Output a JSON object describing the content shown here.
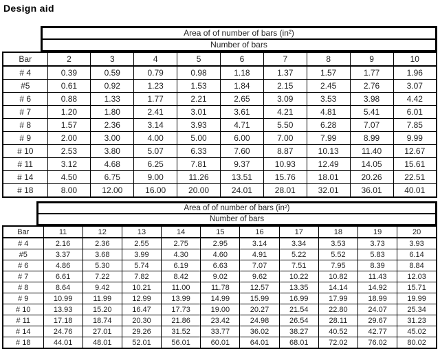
{
  "title": "Design aid",
  "tables": [
    {
      "header": "Area of of number of bars (in²)",
      "subheader": "Number of bars",
      "bar_col_label": "Bar",
      "columns": [
        "2",
        "3",
        "4",
        "5",
        "6",
        "7",
        "8",
        "9",
        "10"
      ],
      "rows": [
        {
          "bar": "# 4",
          "values": [
            "0.39",
            "0.59",
            "0.79",
            "0.98",
            "1.18",
            "1.37",
            "1.57",
            "1.77",
            "1.96"
          ]
        },
        {
          "bar": "#5",
          "values": [
            "0.61",
            "0.92",
            "1.23",
            "1.53",
            "1.84",
            "2.15",
            "2.45",
            "2.76",
            "3.07"
          ]
        },
        {
          "bar": "# 6",
          "values": [
            "0.88",
            "1.33",
            "1.77",
            "2.21",
            "2.65",
            "3.09",
            "3.53",
            "3.98",
            "4.42"
          ]
        },
        {
          "bar": "# 7",
          "values": [
            "1.20",
            "1.80",
            "2.41",
            "3.01",
            "3.61",
            "4.21",
            "4.81",
            "5.41",
            "6.01"
          ]
        },
        {
          "bar": "# 8",
          "values": [
            "1.57",
            "2.36",
            "3.14",
            "3.93",
            "4.71",
            "5.50",
            "6.28",
            "7.07",
            "7.85"
          ]
        },
        {
          "bar": "# 9",
          "values": [
            "2.00",
            "3.00",
            "4.00",
            "5.00",
            "6.00",
            "7.00",
            "7.99",
            "8.99",
            "9.99"
          ]
        },
        {
          "bar": "# 10",
          "values": [
            "2.53",
            "3.80",
            "5.07",
            "6.33",
            "7.60",
            "8.87",
            "10.13",
            "11.40",
            "12.67"
          ]
        },
        {
          "bar": "# 11",
          "values": [
            "3.12",
            "4.68",
            "6.25",
            "7.81",
            "9.37",
            "10.93",
            "12.49",
            "14.05",
            "15.61"
          ]
        },
        {
          "bar": "# 14",
          "values": [
            "4.50",
            "6.75",
            "9.00",
            "11.26",
            "13.51",
            "15.76",
            "18.01",
            "20.26",
            "22.51"
          ]
        },
        {
          "bar": "# 18",
          "values": [
            "8.00",
            "12.00",
            "16.00",
            "20.00",
            "24.01",
            "28.01",
            "32.01",
            "36.01",
            "40.01"
          ]
        }
      ]
    },
    {
      "header": "Area of of number of bars (in²)",
      "subheader": "Number of bars",
      "bar_col_label": "Bar",
      "columns": [
        "11",
        "12",
        "13",
        "14",
        "15",
        "16",
        "17",
        "18",
        "19",
        "20"
      ],
      "rows": [
        {
          "bar": "# 4",
          "values": [
            "2.16",
            "2.36",
            "2.55",
            "2.75",
            "2.95",
            "3.14",
            "3.34",
            "3.53",
            "3.73",
            "3.93"
          ]
        },
        {
          "bar": "#5",
          "values": [
            "3.37",
            "3.68",
            "3.99",
            "4.30",
            "4.60",
            "4.91",
            "5.22",
            "5.52",
            "5.83",
            "6.14"
          ]
        },
        {
          "bar": "# 6",
          "values": [
            "4.86",
            "5.30",
            "5.74",
            "6.19",
            "6.63",
            "7.07",
            "7.51",
            "7.95",
            "8.39",
            "8.84"
          ]
        },
        {
          "bar": "# 7",
          "values": [
            "6.61",
            "7.22",
            "7.82",
            "8.42",
            "9.02",
            "9.62",
            "10.22",
            "10.82",
            "11.43",
            "12.03"
          ]
        },
        {
          "bar": "# 8",
          "values": [
            "8.64",
            "9.42",
            "10.21",
            "11.00",
            "11.78",
            "12.57",
            "13.35",
            "14.14",
            "14.92",
            "15.71"
          ]
        },
        {
          "bar": "# 9",
          "values": [
            "10.99",
            "11.99",
            "12.99",
            "13.99",
            "14.99",
            "15.99",
            "16.99",
            "17.99",
            "18.99",
            "19.99"
          ]
        },
        {
          "bar": "# 10",
          "values": [
            "13.93",
            "15.20",
            "16.47",
            "17.73",
            "19.00",
            "20.27",
            "21.54",
            "22.80",
            "24.07",
            "25.34"
          ]
        },
        {
          "bar": "# 11",
          "values": [
            "17.18",
            "18.74",
            "20.30",
            "21.86",
            "23.42",
            "24.98",
            "26.54",
            "28.11",
            "29.67",
            "31.23"
          ]
        },
        {
          "bar": "# 14",
          "values": [
            "24.76",
            "27.01",
            "29.26",
            "31.52",
            "33.77",
            "36.02",
            "38.27",
            "40.52",
            "42.77",
            "45.02"
          ]
        },
        {
          "bar": "# 18",
          "values": [
            "44.01",
            "48.01",
            "52.01",
            "56.01",
            "60.01",
            "64.01",
            "68.01",
            "72.02",
            "76.02",
            "80.02"
          ]
        }
      ]
    }
  ]
}
